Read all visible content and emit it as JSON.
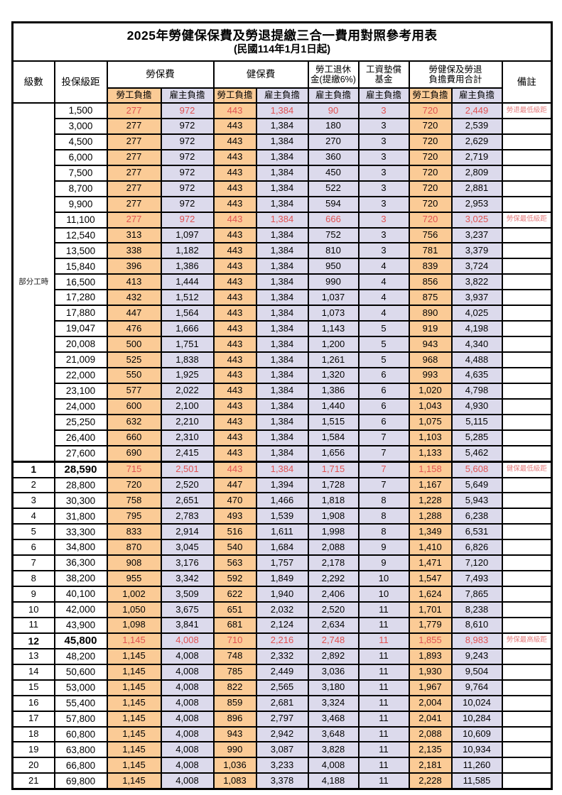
{
  "title": "2025年勞健保保費及勞退提繳三合一費用對照參考用表",
  "subtitle": "(民國114年1月1日起)",
  "colors": {
    "employee_col_bg": "#fbcb96",
    "employer_col_bg": "#dcdaec",
    "highlight_number_red": "#e05353",
    "note_red": "#e57e7e",
    "border_black": "#000000"
  },
  "header": {
    "col_level": "級數",
    "col_bracket": "投保級距",
    "group_labor": "勞保費",
    "group_health": "健保費",
    "group_pension_line1": "勞工退休",
    "group_pension_line2": "金(提繳6%)",
    "group_fund_line1": "工資墊償",
    "group_fund_line2": "基金",
    "group_total_line1": "勞健保及勞退",
    "group_total_line2": "負擔費用合計",
    "col_note": "備註",
    "sub_employee": "勞工負擔",
    "sub_employer": "雇主負擔"
  },
  "part_time_label": "部分工時",
  "rows": [
    {
      "level": "",
      "bracket": "1,500",
      "values": [
        "277",
        "972",
        "443",
        "1,384",
        "90",
        "3",
        "720",
        "2,449"
      ],
      "note": "勞退最低級距",
      "red": true,
      "bold": false
    },
    {
      "level": "",
      "bracket": "3,000",
      "values": [
        "277",
        "972",
        "443",
        "1,384",
        "180",
        "3",
        "720",
        "2,539"
      ],
      "note": "",
      "red": false,
      "bold": false
    },
    {
      "level": "",
      "bracket": "4,500",
      "values": [
        "277",
        "972",
        "443",
        "1,384",
        "270",
        "3",
        "720",
        "2,629"
      ],
      "note": "",
      "red": false,
      "bold": false
    },
    {
      "level": "",
      "bracket": "6,000",
      "values": [
        "277",
        "972",
        "443",
        "1,384",
        "360",
        "3",
        "720",
        "2,719"
      ],
      "note": "",
      "red": false,
      "bold": false
    },
    {
      "level": "",
      "bracket": "7,500",
      "values": [
        "277",
        "972",
        "443",
        "1,384",
        "450",
        "3",
        "720",
        "2,809"
      ],
      "note": "",
      "red": false,
      "bold": false
    },
    {
      "level": "",
      "bracket": "8,700",
      "values": [
        "277",
        "972",
        "443",
        "1,384",
        "522",
        "3",
        "720",
        "2,881"
      ],
      "note": "",
      "red": false,
      "bold": false
    },
    {
      "level": "",
      "bracket": "9,900",
      "values": [
        "277",
        "972",
        "443",
        "1,384",
        "594",
        "3",
        "720",
        "2,953"
      ],
      "note": "",
      "red": false,
      "bold": false
    },
    {
      "level": "",
      "bracket": "11,100",
      "values": [
        "277",
        "972",
        "443",
        "1,384",
        "666",
        "3",
        "720",
        "3,025"
      ],
      "note": "勞保最低級距",
      "red": true,
      "bold": false
    },
    {
      "level": "",
      "bracket": "12,540",
      "values": [
        "313",
        "1,097",
        "443",
        "1,384",
        "752",
        "3",
        "756",
        "3,237"
      ],
      "note": "",
      "red": false,
      "bold": false
    },
    {
      "level": "",
      "bracket": "13,500",
      "values": [
        "338",
        "1,182",
        "443",
        "1,384",
        "810",
        "3",
        "781",
        "3,379"
      ],
      "note": "",
      "red": false,
      "bold": false
    },
    {
      "level": "",
      "bracket": "15,840",
      "values": [
        "396",
        "1,386",
        "443",
        "1,384",
        "950",
        "4",
        "839",
        "3,724"
      ],
      "note": "",
      "red": false,
      "bold": false
    },
    {
      "level": "",
      "bracket": "16,500",
      "values": [
        "413",
        "1,444",
        "443",
        "1,384",
        "990",
        "4",
        "856",
        "3,822"
      ],
      "note": "",
      "red": false,
      "bold": false
    },
    {
      "level": "",
      "bracket": "17,280",
      "values": [
        "432",
        "1,512",
        "443",
        "1,384",
        "1,037",
        "4",
        "875",
        "3,937"
      ],
      "note": "",
      "red": false,
      "bold": false
    },
    {
      "level": "",
      "bracket": "17,880",
      "values": [
        "447",
        "1,564",
        "443",
        "1,384",
        "1,073",
        "4",
        "890",
        "4,025"
      ],
      "note": "",
      "red": false,
      "bold": false
    },
    {
      "level": "",
      "bracket": "19,047",
      "values": [
        "476",
        "1,666",
        "443",
        "1,384",
        "1,143",
        "5",
        "919",
        "4,198"
      ],
      "note": "",
      "red": false,
      "bold": false
    },
    {
      "level": "",
      "bracket": "20,008",
      "values": [
        "500",
        "1,751",
        "443",
        "1,384",
        "1,200",
        "5",
        "943",
        "4,340"
      ],
      "note": "",
      "red": false,
      "bold": false
    },
    {
      "level": "",
      "bracket": "21,009",
      "values": [
        "525",
        "1,838",
        "443",
        "1,384",
        "1,261",
        "5",
        "968",
        "4,488"
      ],
      "note": "",
      "red": false,
      "bold": false
    },
    {
      "level": "",
      "bracket": "22,000",
      "values": [
        "550",
        "1,925",
        "443",
        "1,384",
        "1,320",
        "6",
        "993",
        "4,635"
      ],
      "note": "",
      "red": false,
      "bold": false
    },
    {
      "level": "",
      "bracket": "23,100",
      "values": [
        "577",
        "2,022",
        "443",
        "1,384",
        "1,386",
        "6",
        "1,020",
        "4,798"
      ],
      "note": "",
      "red": false,
      "bold": false
    },
    {
      "level": "",
      "bracket": "24,000",
      "values": [
        "600",
        "2,100",
        "443",
        "1,384",
        "1,440",
        "6",
        "1,043",
        "4,930"
      ],
      "note": "",
      "red": false,
      "bold": false
    },
    {
      "level": "",
      "bracket": "25,250",
      "values": [
        "632",
        "2,210",
        "443",
        "1,384",
        "1,515",
        "6",
        "1,075",
        "5,115"
      ],
      "note": "",
      "red": false,
      "bold": false
    },
    {
      "level": "",
      "bracket": "26,400",
      "values": [
        "660",
        "2,310",
        "443",
        "1,384",
        "1,584",
        "7",
        "1,103",
        "5,285"
      ],
      "note": "",
      "red": false,
      "bold": false
    },
    {
      "level": "",
      "bracket": "27,600",
      "values": [
        "690",
        "2,415",
        "443",
        "1,384",
        "1,656",
        "7",
        "1,133",
        "5,462"
      ],
      "note": "",
      "red": false,
      "bold": false
    },
    {
      "level": "1",
      "bracket": "28,590",
      "values": [
        "715",
        "2,501",
        "443",
        "1,384",
        "1,715",
        "7",
        "1,158",
        "5,608"
      ],
      "note": "健保最低級距",
      "red": true,
      "bold": true
    },
    {
      "level": "2",
      "bracket": "28,800",
      "values": [
        "720",
        "2,520",
        "447",
        "1,394",
        "1,728",
        "7",
        "1,167",
        "5,649"
      ],
      "note": "",
      "red": false,
      "bold": false
    },
    {
      "level": "3",
      "bracket": "30,300",
      "values": [
        "758",
        "2,651",
        "470",
        "1,466",
        "1,818",
        "8",
        "1,228",
        "5,943"
      ],
      "note": "",
      "red": false,
      "bold": false
    },
    {
      "level": "4",
      "bracket": "31,800",
      "values": [
        "795",
        "2,783",
        "493",
        "1,539",
        "1,908",
        "8",
        "1,288",
        "6,238"
      ],
      "note": "",
      "red": false,
      "bold": false
    },
    {
      "level": "5",
      "bracket": "33,300",
      "values": [
        "833",
        "2,914",
        "516",
        "1,611",
        "1,998",
        "8",
        "1,349",
        "6,531"
      ],
      "note": "",
      "red": false,
      "bold": false
    },
    {
      "level": "6",
      "bracket": "34,800",
      "values": [
        "870",
        "3,045",
        "540",
        "1,684",
        "2,088",
        "9",
        "1,410",
        "6,826"
      ],
      "note": "",
      "red": false,
      "bold": false
    },
    {
      "level": "7",
      "bracket": "36,300",
      "values": [
        "908",
        "3,176",
        "563",
        "1,757",
        "2,178",
        "9",
        "1,471",
        "7,120"
      ],
      "note": "",
      "red": false,
      "bold": false
    },
    {
      "level": "8",
      "bracket": "38,200",
      "values": [
        "955",
        "3,342",
        "592",
        "1,849",
        "2,292",
        "10",
        "1,547",
        "7,493"
      ],
      "note": "",
      "red": false,
      "bold": false
    },
    {
      "level": "9",
      "bracket": "40,100",
      "values": [
        "1,002",
        "3,509",
        "622",
        "1,940",
        "2,406",
        "10",
        "1,624",
        "7,865"
      ],
      "note": "",
      "red": false,
      "bold": false
    },
    {
      "level": "10",
      "bracket": "42,000",
      "values": [
        "1,050",
        "3,675",
        "651",
        "2,032",
        "2,520",
        "11",
        "1,701",
        "8,238"
      ],
      "note": "",
      "red": false,
      "bold": false
    },
    {
      "level": "11",
      "bracket": "43,900",
      "values": [
        "1,098",
        "3,841",
        "681",
        "2,124",
        "2,634",
        "11",
        "1,779",
        "8,610"
      ],
      "note": "",
      "red": false,
      "bold": false
    },
    {
      "level": "12",
      "bracket": "45,800",
      "values": [
        "1,145",
        "4,008",
        "710",
        "2,216",
        "2,748",
        "11",
        "1,855",
        "8,983"
      ],
      "note": "勞保最高級距",
      "red": true,
      "bold": true
    },
    {
      "level": "13",
      "bracket": "48,200",
      "values": [
        "1,145",
        "4,008",
        "748",
        "2,332",
        "2,892",
        "11",
        "1,893",
        "9,243"
      ],
      "note": "",
      "red": false,
      "bold": false
    },
    {
      "level": "14",
      "bracket": "50,600",
      "values": [
        "1,145",
        "4,008",
        "785",
        "2,449",
        "3,036",
        "11",
        "1,930",
        "9,504"
      ],
      "note": "",
      "red": false,
      "bold": false
    },
    {
      "level": "15",
      "bracket": "53,000",
      "values": [
        "1,145",
        "4,008",
        "822",
        "2,565",
        "3,180",
        "11",
        "1,967",
        "9,764"
      ],
      "note": "",
      "red": false,
      "bold": false
    },
    {
      "level": "16",
      "bracket": "55,400",
      "values": [
        "1,145",
        "4,008",
        "859",
        "2,681",
        "3,324",
        "11",
        "2,004",
        "10,024"
      ],
      "note": "",
      "red": false,
      "bold": false
    },
    {
      "level": "17",
      "bracket": "57,800",
      "values": [
        "1,145",
        "4,008",
        "896",
        "2,797",
        "3,468",
        "11",
        "2,041",
        "10,284"
      ],
      "note": "",
      "red": false,
      "bold": false
    },
    {
      "level": "18",
      "bracket": "60,800",
      "values": [
        "1,145",
        "4,008",
        "943",
        "2,942",
        "3,648",
        "11",
        "2,088",
        "10,609"
      ],
      "note": "",
      "red": false,
      "bold": false
    },
    {
      "level": "19",
      "bracket": "63,800",
      "values": [
        "1,145",
        "4,008",
        "990",
        "3,087",
        "3,828",
        "11",
        "2,135",
        "10,934"
      ],
      "note": "",
      "red": false,
      "bold": false
    },
    {
      "level": "20",
      "bracket": "66,800",
      "values": [
        "1,145",
        "4,008",
        "1,036",
        "3,233",
        "4,008",
        "11",
        "2,181",
        "11,260"
      ],
      "note": "",
      "red": false,
      "bold": false
    },
    {
      "level": "21",
      "bracket": "69,800",
      "values": [
        "1,145",
        "4,008",
        "1,083",
        "3,378",
        "4,188",
        "11",
        "2,228",
        "11,585"
      ],
      "note": "",
      "red": false,
      "bold": false
    }
  ],
  "value_column_tints": [
    "emp",
    "er",
    "emp",
    "er",
    "er",
    "er",
    "emp",
    "er"
  ]
}
